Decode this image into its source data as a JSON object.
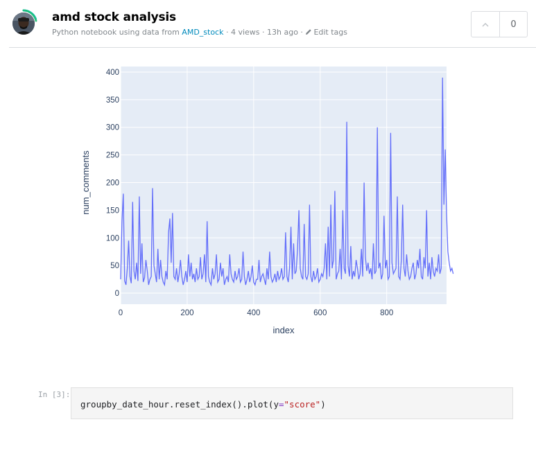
{
  "header": {
    "title": "amd stock analysis",
    "meta_prefix": "Python notebook using data from ",
    "dataset_link": "AMD_stock",
    "meta_views": " · 4 views · 13h ago · ",
    "edit_tags": "Edit tags",
    "vote_count": "0"
  },
  "cell": {
    "prompt": "In [3]:",
    "code_prefix": "groupby_date_hour.reset_index().plot(y",
    "code_op": "=",
    "code_string": "\"score\"",
    "code_suffix": ")"
  },
  "colors": {
    "accent": "#008abc",
    "line": "#636efa",
    "plot_bg": "#e5ecf6"
  },
  "chart_data": {
    "type": "line",
    "xlabel": "index",
    "ylabel": "num_comments",
    "xlim": [
      0,
      980
    ],
    "ylim": [
      -20,
      410
    ],
    "x_ticks": [
      0,
      200,
      400,
      600,
      800
    ],
    "y_ticks": [
      0,
      50,
      100,
      150,
      200,
      250,
      300,
      350,
      400
    ],
    "x_tick_labels": [
      "0",
      "200",
      "400",
      "600",
      "800"
    ],
    "y_tick_labels": [
      "0",
      "50",
      "100",
      "150",
      "200",
      "250",
      "300",
      "350",
      "400"
    ],
    "series": [
      {
        "x_start": 0,
        "x_step": 4,
        "values": [
          25,
          130,
          180,
          22,
          15,
          45,
          95,
          30,
          18,
          165,
          40,
          25,
          55,
          22,
          175,
          35,
          90,
          20,
          28,
          60,
          40,
          15,
          25,
          30,
          190,
          50,
          35,
          20,
          80,
          25,
          60,
          30,
          20,
          15,
          40,
          25,
          110,
          135,
          55,
          145,
          30,
          25,
          45,
          20,
          35,
          60,
          30,
          15,
          25,
          40,
          20,
          70,
          30,
          55,
          25,
          35,
          20,
          45,
          25,
          30,
          65,
          25,
          35,
          70,
          20,
          130,
          30,
          20,
          15,
          45,
          25,
          35,
          70,
          20,
          25,
          55,
          30,
          45,
          15,
          25,
          30,
          20,
          70,
          35,
          25,
          20,
          40,
          25,
          30,
          45,
          20,
          25,
          75,
          30,
          15,
          25,
          40,
          20,
          30,
          50,
          20,
          15,
          25,
          25,
          60,
          20,
          30,
          35,
          25,
          15,
          45,
          25,
          75,
          30,
          20,
          25,
          35,
          20,
          40,
          25,
          30,
          45,
          25,
          30,
          110,
          30,
          20,
          45,
          120,
          25,
          90,
          35,
          40,
          80,
          150,
          45,
          30,
          25,
          125,
          30,
          25,
          35,
          160,
          30,
          20,
          40,
          25,
          30,
          45,
          20,
          25,
          35,
          30,
          45,
          90,
          25,
          120,
          30,
          160,
          45,
          60,
          185,
          25,
          35,
          40,
          80,
          25,
          150,
          45,
          35,
          310,
          50,
          30,
          85,
          25,
          40,
          30,
          60,
          45,
          25,
          35,
          80,
          30,
          200,
          65,
          40,
          55,
          35,
          45,
          25,
          90,
          35,
          40,
          300,
          45,
          55,
          25,
          35,
          140,
          45,
          60,
          25,
          30,
          290,
          55,
          35,
          40,
          45,
          175,
          30,
          25,
          60,
          160,
          45,
          30,
          70,
          40,
          25,
          30,
          45,
          55,
          25,
          35,
          60,
          45,
          80,
          30,
          25,
          65,
          45,
          150,
          30,
          55,
          25,
          65,
          40,
          30,
          45,
          40,
          70,
          35,
          45,
          390,
          160,
          260,
          145,
          75,
          55,
          40,
          45,
          35
        ]
      }
    ]
  }
}
